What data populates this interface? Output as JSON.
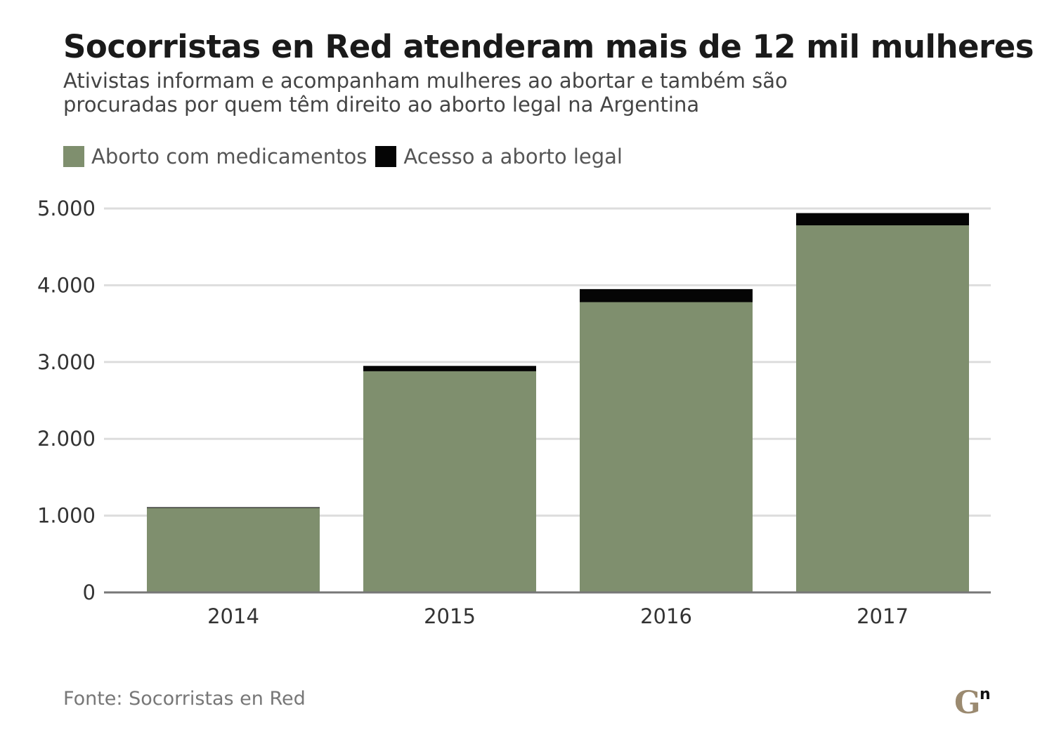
{
  "title": "Socorristas en Red atenderam mais de 12 mil mulheres",
  "subtitle": "Ativistas informam e acompanham mulheres ao abortar e também são procuradas por quem têm direito ao aborto legal na Argentina",
  "source": "Fonte: Socorristas en Red",
  "logo": {
    "icon": "gn-logo",
    "letter": "G",
    "sup": "n"
  },
  "chart_data": {
    "type": "bar",
    "stacked": true,
    "categories": [
      "2014",
      "2015",
      "2016",
      "2017"
    ],
    "series": [
      {
        "name": "Aborto com medicamentos",
        "color": "#7f8f6e",
        "values": [
          1100,
          2880,
          3780,
          4780
        ]
      },
      {
        "name": "Acesso a aborto legal",
        "color": "#050505",
        "values": [
          10,
          70,
          170,
          160
        ]
      }
    ],
    "ylim": [
      0,
      5000
    ],
    "yticks": [
      0,
      1000,
      2000,
      3000,
      4000,
      5000
    ],
    "ytick_labels": [
      "0",
      "1.000",
      "2.000",
      "3.000",
      "4.000",
      "5.000"
    ],
    "grid": true,
    "legend_position": "top-left",
    "xlabel": "",
    "ylabel": ""
  }
}
